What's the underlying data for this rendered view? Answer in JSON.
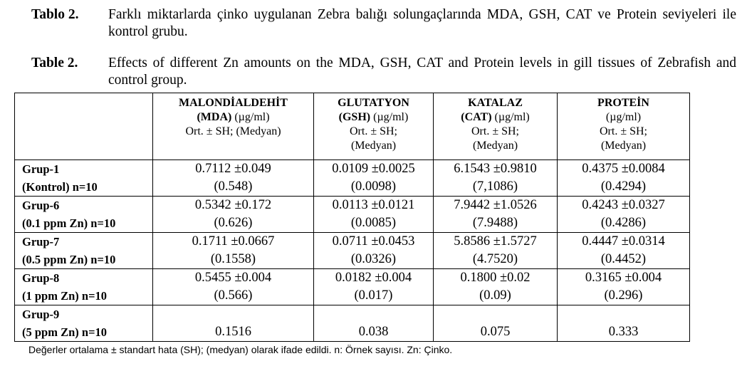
{
  "caption_tr": {
    "label": "Tablo 2.",
    "text": "Farklı miktarlarda çinko uygulanan Zebra balığı solungaçlarında MDA, GSH, CAT ve Protein seviyeleri ile kontrol grubu."
  },
  "caption_en": {
    "label": "Table 2.",
    "text": "Effects of different Zn amounts on the MDA, GSH, CAT and Protein levels in gill tissues of Zebrafish and control group."
  },
  "columns": [
    {
      "l1": "MALONDİALDEHİT",
      "l2b": "(MDA)",
      "l2n": " (µg/ml)",
      "l3": "Ort. ± SH; (Medyan)",
      "l4": ""
    },
    {
      "l1": "GLUTATYON",
      "l2b": "(GSH)",
      "l2n": " (µg/ml)",
      "l3": "Ort. ± SH;",
      "l4": "(Medyan)"
    },
    {
      "l1": "KATALAZ",
      "l2b": "(CAT)",
      "l2n": " (µg/ml)",
      "l3": "Ort. ± SH;",
      "l4": "(Medyan)"
    },
    {
      "l1": "PROTEİN",
      "l2b": "",
      "l2n": "(µg/ml)",
      "l3": "Ort. ± SH;",
      "l4": "(Medyan)"
    }
  ],
  "rows": [
    {
      "g1": "Grup-1",
      "g2": "(Kontrol) n=10",
      "cells": [
        [
          "0.7112 ±0.049",
          "(0.548)"
        ],
        [
          "0.0109 ±0.0025",
          "(0.0098)"
        ],
        [
          "6.1543 ±0.9810",
          "(7,1086)"
        ],
        [
          "0.4375 ±0.0084",
          "(0.4294)"
        ]
      ]
    },
    {
      "g1": "Grup-6",
      "g2": "(0.1 ppm Zn) n=10",
      "cells": [
        [
          "0.5342 ±0.172",
          "(0.626)"
        ],
        [
          "0.0113 ±0.0121",
          "(0.0085)"
        ],
        [
          "7.9442 ±1.0526",
          "(7.9488)"
        ],
        [
          "0.4243 ±0.0327",
          "(0.4286)"
        ]
      ]
    },
    {
      "g1": "Grup-7",
      "g2": "(0.5 ppm Zn) n=10",
      "cells": [
        [
          "0.1711 ±0.0667",
          "(0.1558)"
        ],
        [
          "0.0711 ±0.0453",
          "(0.0326)"
        ],
        [
          "5.8586 ±1.5727",
          "(4.7520)"
        ],
        [
          "0.4447 ±0.0314",
          "(0.4452)"
        ]
      ]
    },
    {
      "g1": "Grup-8",
      "g2": "(1 ppm Zn) n=10",
      "cells": [
        [
          "0.5455 ±0.004",
          "(0.566)"
        ],
        [
          "0.0182 ±0.004",
          "(0.017)"
        ],
        [
          "0.1800 ±0.02",
          "(0.09)"
        ],
        [
          "0.3165 ±0.004",
          "(0.296)"
        ]
      ]
    }
  ],
  "last_row": {
    "g1": "Grup-9",
    "g2": "(5 ppm Zn) n=10",
    "values": [
      "0.1516",
      "0.038",
      "0.075",
      "0.333"
    ]
  },
  "footnote": "Değerler ortalama ± standart hata (SH); (medyan) olarak ifade edildi. n: Örnek sayısı. Zn: Çinko."
}
